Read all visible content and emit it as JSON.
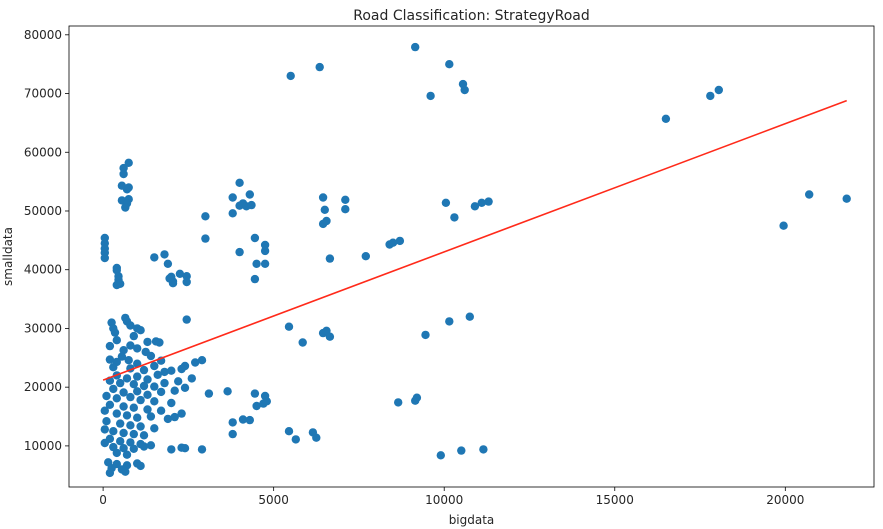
{
  "chart_data": {
    "type": "scatter",
    "title": "Road Classification: StrategyRoad",
    "xlabel": "bigdata",
    "ylabel": "smalldata",
    "xlim": [
      -1000,
      22600
    ],
    "ylim": [
      3000,
      81500
    ],
    "xticks": [
      0,
      5000,
      10000,
      15000,
      20000
    ],
    "yticks": [
      10000,
      20000,
      30000,
      40000,
      50000,
      60000,
      70000,
      80000
    ],
    "xtick_labels": [
      "0",
      "5000",
      "10000",
      "15000",
      "20000"
    ],
    "ytick_labels": [
      "10000",
      "20000",
      "30000",
      "40000",
      "50000",
      "60000",
      "70000",
      "80000"
    ],
    "grid": false,
    "marker_color": "#1f77b4",
    "fit_line": {
      "color": "#ff2a1a",
      "x": [
        0,
        21800
      ],
      "y": [
        21200,
        68800
      ]
    },
    "series": [
      {
        "points": [
          [
            9150,
            77900
          ],
          [
            10150,
            75000
          ],
          [
            6350,
            74500
          ],
          [
            5500,
            73000
          ],
          [
            10550,
            71600
          ],
          [
            10600,
            70600
          ],
          [
            9600,
            69600
          ],
          [
            18050,
            70600
          ],
          [
            17800,
            69600
          ],
          [
            16500,
            65700
          ],
          [
            20700,
            52800
          ],
          [
            21800,
            52100
          ],
          [
            19950,
            47500
          ],
          [
            11300,
            51600
          ],
          [
            11100,
            51400
          ],
          [
            10900,
            50800
          ],
          [
            10050,
            51400
          ],
          [
            10300,
            48900
          ],
          [
            6450,
            52300
          ],
          [
            6500,
            50200
          ],
          [
            6450,
            47800
          ],
          [
            6550,
            48300
          ],
          [
            7100,
            51900
          ],
          [
            7100,
            50300
          ],
          [
            6650,
            41900
          ],
          [
            7700,
            42300
          ],
          [
            8400,
            44300
          ],
          [
            8500,
            44600
          ],
          [
            8700,
            44900
          ],
          [
            3800,
            52300
          ],
          [
            4000,
            54800
          ],
          [
            4300,
            52800
          ],
          [
            4100,
            51300
          ],
          [
            4000,
            50900
          ],
          [
            4200,
            50800
          ],
          [
            4350,
            51000
          ],
          [
            3800,
            49600
          ],
          [
            3000,
            49100
          ],
          [
            3000,
            45300
          ],
          [
            4450,
            45400
          ],
          [
            4750,
            43200
          ],
          [
            4750,
            44200
          ],
          [
            4000,
            43000
          ],
          [
            4500,
            41000
          ],
          [
            4750,
            41000
          ],
          [
            4450,
            38400
          ],
          [
            50,
            45400
          ],
          [
            50,
            44500
          ],
          [
            50,
            43600
          ],
          [
            50,
            42900
          ],
          [
            50,
            42000
          ],
          [
            1500,
            42100
          ],
          [
            1800,
            42600
          ],
          [
            1900,
            41000
          ],
          [
            2250,
            39300
          ],
          [
            2450,
            38900
          ],
          [
            2000,
            38800
          ],
          [
            2050,
            38000
          ],
          [
            2050,
            37700
          ],
          [
            2450,
            37900
          ],
          [
            1950,
            38500
          ],
          [
            400,
            40300
          ],
          [
            400,
            39900
          ],
          [
            450,
            38900
          ],
          [
            450,
            38300
          ],
          [
            400,
            37400
          ],
          [
            500,
            37600
          ],
          [
            750,
            58200
          ],
          [
            600,
            57300
          ],
          [
            600,
            56300
          ],
          [
            550,
            54300
          ],
          [
            700,
            53700
          ],
          [
            750,
            54000
          ],
          [
            550,
            51800
          ],
          [
            750,
            52000
          ],
          [
            700,
            51300
          ],
          [
            650,
            50600
          ],
          [
            2450,
            31500
          ],
          [
            1550,
            27800
          ],
          [
            1650,
            27600
          ],
          [
            5450,
            30300
          ],
          [
            5850,
            27600
          ],
          [
            6450,
            29200
          ],
          [
            6550,
            29600
          ],
          [
            6650,
            28600
          ],
          [
            9450,
            28900
          ],
          [
            10150,
            31200
          ],
          [
            10750,
            32000
          ],
          [
            250,
            31000
          ],
          [
            300,
            30000
          ],
          [
            350,
            29300
          ],
          [
            650,
            31800
          ],
          [
            700,
            31200
          ],
          [
            800,
            30500
          ],
          [
            1000,
            30000
          ],
          [
            1100,
            29700
          ],
          [
            900,
            28700
          ],
          [
            1300,
            27700
          ],
          [
            400,
            28000
          ],
          [
            200,
            27000
          ],
          [
            600,
            26300
          ],
          [
            800,
            27100
          ],
          [
            1000,
            26600
          ],
          [
            1250,
            26000
          ],
          [
            550,
            25200
          ],
          [
            750,
            24600
          ],
          [
            200,
            24700
          ],
          [
            400,
            24300
          ],
          [
            1000,
            24000
          ],
          [
            1400,
            25300
          ],
          [
            1700,
            24500
          ],
          [
            1500,
            23600
          ],
          [
            300,
            23400
          ],
          [
            800,
            23200
          ],
          [
            1200,
            22900
          ],
          [
            1800,
            22600
          ],
          [
            2400,
            23600
          ],
          [
            2700,
            24200
          ],
          [
            2900,
            24600
          ],
          [
            2300,
            23100
          ],
          [
            2000,
            22800
          ],
          [
            1600,
            22100
          ],
          [
            400,
            22000
          ],
          [
            700,
            21500
          ],
          [
            1000,
            21800
          ],
          [
            1300,
            21300
          ],
          [
            200,
            21100
          ],
          [
            500,
            20700
          ],
          [
            900,
            20500
          ],
          [
            1200,
            20200
          ],
          [
            1500,
            20100
          ],
          [
            1800,
            20700
          ],
          [
            2200,
            21000
          ],
          [
            2600,
            21500
          ],
          [
            2400,
            19900
          ],
          [
            2100,
            19400
          ],
          [
            1700,
            19200
          ],
          [
            300,
            19700
          ],
          [
            600,
            19100
          ],
          [
            1000,
            19300
          ],
          [
            1300,
            18700
          ],
          [
            100,
            18500
          ],
          [
            400,
            18100
          ],
          [
            800,
            18300
          ],
          [
            1100,
            17800
          ],
          [
            1500,
            17600
          ],
          [
            2000,
            17300
          ],
          [
            200,
            17000
          ],
          [
            600,
            16700
          ],
          [
            900,
            16500
          ],
          [
            1300,
            16200
          ],
          [
            1700,
            16000
          ],
          [
            50,
            16000
          ],
          [
            400,
            15500
          ],
          [
            700,
            15200
          ],
          [
            1000,
            14800
          ],
          [
            1400,
            15000
          ],
          [
            1900,
            14600
          ],
          [
            2100,
            14900
          ],
          [
            2300,
            15500
          ],
          [
            100,
            14200
          ],
          [
            500,
            13800
          ],
          [
            800,
            13500
          ],
          [
            1100,
            13300
          ],
          [
            1500,
            13000
          ],
          [
            50,
            12800
          ],
          [
            300,
            12500
          ],
          [
            600,
            12200
          ],
          [
            900,
            12000
          ],
          [
            1200,
            11800
          ],
          [
            200,
            11200
          ],
          [
            500,
            10800
          ],
          [
            800,
            10600
          ],
          [
            1100,
            10300
          ],
          [
            1400,
            10100
          ],
          [
            50,
            10500
          ],
          [
            300,
            9800
          ],
          [
            600,
            9600
          ],
          [
            900,
            9500
          ],
          [
            1200,
            9900
          ],
          [
            400,
            8800
          ],
          [
            700,
            8500
          ],
          [
            150,
            7200
          ],
          [
            400,
            6900
          ],
          [
            700,
            6700
          ],
          [
            1000,
            7000
          ],
          [
            250,
            6200
          ],
          [
            550,
            6000
          ],
          [
            200,
            5400
          ],
          [
            650,
            5600
          ],
          [
            1100,
            6600
          ],
          [
            2000,
            9400
          ],
          [
            2300,
            9700
          ],
          [
            2400,
            9600
          ],
          [
            2900,
            9400
          ],
          [
            3800,
            12000
          ],
          [
            4500,
            16800
          ],
          [
            4700,
            17200
          ],
          [
            4800,
            17600
          ],
          [
            4450,
            18900
          ],
          [
            4750,
            18500
          ],
          [
            3650,
            19300
          ],
          [
            3100,
            18900
          ],
          [
            3800,
            14000
          ],
          [
            4100,
            14500
          ],
          [
            4300,
            14400
          ],
          [
            5450,
            12500
          ],
          [
            5650,
            11100
          ],
          [
            6150,
            12300
          ],
          [
            6250,
            11400
          ],
          [
            8650,
            17400
          ],
          [
            9150,
            17700
          ],
          [
            9200,
            18200
          ],
          [
            9900,
            8400
          ],
          [
            10500,
            9200
          ],
          [
            11150,
            9400
          ]
        ]
      }
    ]
  }
}
